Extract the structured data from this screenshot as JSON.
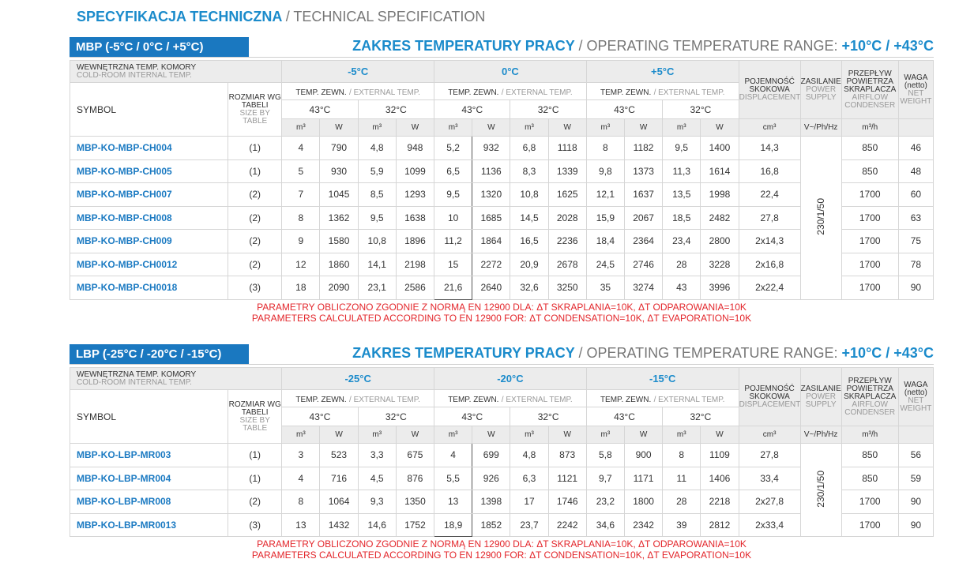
{
  "header": {
    "title": "SPECYFIKACJA TECHNICZNA",
    "subtitle": "/ TECHNICAL SPECIFICATION"
  },
  "sections": [
    {
      "badge": "MBP (-5°C / 0°C / +5°C)",
      "range_title": "ZAKRES TEMPERATURY PRACY",
      "range_subtitle": "/ OPERATING TEMPERATURE RANGE:",
      "range_value": "+10°C / +43°C",
      "table": {
        "chamber_label": "WEWNĘTRZNA TEMP. KOMORY",
        "chamber_label_en": "COLD-ROOM INTERNAL TEMP.",
        "symbol_label": "SYMBOL",
        "size_label": "ROZMIAR WG TABELI",
        "size_label_en": "SIZE BY TABLE",
        "groups": [
          "-5°C",
          "0°C",
          "+5°C"
        ],
        "ext_label": "TEMP. ZEWN.",
        "ext_label_en": "/ EXTERNAL TEMP.",
        "ext_temps": [
          "43°C",
          "32°C"
        ],
        "units": [
          "m³",
          "W"
        ],
        "displacement_label": "POJEMNOŚĆ SKOKOWA",
        "displacement_label_en": "DISPLACEMENT",
        "displacement_unit": "cm³",
        "supply_label": "ZASILANIE",
        "supply_label_en": "POWER SUPPLY",
        "supply_unit": "V~/Ph/Hz",
        "supply_value": "230/1/50",
        "airflow_label": "PRZEPŁYW POWIETRZA SKRAPLACZA",
        "airflow_label_en": "AIRFLOW CONDENSER",
        "airflow_unit": "m³/h",
        "weight_label": "WAGA (netto)",
        "weight_label_en": "NET WEIGHT",
        "rows": [
          [
            "MBP-KO-MBP-CH004",
            "(1)",
            "4",
            "790",
            "4,8",
            "948",
            "5,2",
            "932",
            "6,8",
            "1118",
            "8",
            "1182",
            "9,5",
            "1400",
            "14,3",
            "850",
            "46"
          ],
          [
            "MBP-KO-MBP-CH005",
            "(1)",
            "5",
            "930",
            "5,9",
            "1099",
            "6,5",
            "1136",
            "8,3",
            "1339",
            "9,8",
            "1373",
            "11,3",
            "1614",
            "16,8",
            "850",
            "48"
          ],
          [
            "MBP-KO-MBP-CH007",
            "(2)",
            "7",
            "1045",
            "8,5",
            "1293",
            "9,5",
            "1320",
            "10,8",
            "1625",
            "12,1",
            "1637",
            "13,5",
            "1998",
            "22,4",
            "1700",
            "60"
          ],
          [
            "MBP-KO-MBP-CH008",
            "(2)",
            "8",
            "1362",
            "9,5",
            "1638",
            "10",
            "1685",
            "14,5",
            "2028",
            "15,9",
            "2067",
            "18,5",
            "2482",
            "27,8",
            "1700",
            "63"
          ],
          [
            "MBP-KO-MBP-CH009",
            "(2)",
            "9",
            "1580",
            "10,8",
            "1896",
            "11,2",
            "1864",
            "16,5",
            "2236",
            "18,4",
            "2364",
            "23,4",
            "2800",
            "2x14,3",
            "1700",
            "75"
          ],
          [
            "MBP-KO-MBP-CH0012",
            "(2)",
            "12",
            "1860",
            "14,1",
            "2198",
            "15",
            "2272",
            "20,9",
            "2678",
            "24,5",
            "2746",
            "28",
            "3228",
            "2x16,8",
            "1700",
            "78"
          ],
          [
            "MBP-KO-MBP-CH0018",
            "(3)",
            "18",
            "2090",
            "23,1",
            "2586",
            "21,6",
            "2640",
            "32,6",
            "3250",
            "35",
            "3274",
            "43",
            "3996",
            "2x22,4",
            "1700",
            "90"
          ]
        ]
      },
      "notes": [
        "PARAMETRY OBLICZONO ZGODNIE Z NORMĄ EN 12900 DLA: ΔT SKRAPLANIA=10K, ΔT ODPAROWANIA=10K",
        "PARAMETERS CALCULATED ACCORDING TO EN 12900 FOR: ΔT CONDENSATION=10K, ΔT EVAPORATION=10K"
      ]
    },
    {
      "badge": "LBP (-25°C / -20°C / -15°C)",
      "range_title": "ZAKRES TEMPERATURY PRACY",
      "range_subtitle": "/ OPERATING TEMPERATURE RANGE:",
      "range_value": "+10°C / +43°C",
      "table": {
        "chamber_label": "WEWNĘTRZNA TEMP. KOMORY",
        "chamber_label_en": "COLD-ROOM INTERNAL TEMP.",
        "symbol_label": "SYMBOL",
        "size_label": "ROZMIAR WG TABELI",
        "size_label_en": "SIZE BY TABLE",
        "groups": [
          "-25°C",
          "-20°C",
          "-15°C"
        ],
        "ext_label": "TEMP. ZEWN.",
        "ext_label_en": "/ EXTERNAL TEMP.",
        "ext_temps": [
          "43°C",
          "32°C"
        ],
        "units": [
          "m³",
          "W"
        ],
        "displacement_label": "POJEMNOŚĆ SKOKOWA",
        "displacement_label_en": "DISPLACEMENT",
        "displacement_unit": "cm³",
        "supply_label": "ZASILANIE",
        "supply_label_en": "POWER SUPPLY",
        "supply_unit": "V~/Ph/Hz",
        "supply_value": "230/1/50",
        "airflow_label": "PRZEPŁYW POWIETRZA SKRAPLACZA",
        "airflow_label_en": "AIRFLOW CONDENSER",
        "airflow_unit": "m³/h",
        "weight_label": "WAGA (netto)",
        "weight_label_en": "NET WEIGHT",
        "rows": [
          [
            "MBP-KO-LBP-MR003",
            "(1)",
            "3",
            "523",
            "3,3",
            "675",
            "4",
            "699",
            "4,8",
            "873",
            "5,8",
            "900",
            "8",
            "1109",
            "27,8",
            "850",
            "56"
          ],
          [
            "MBP-KO-LBP-MR004",
            "(1)",
            "4",
            "716",
            "4,5",
            "876",
            "5,5",
            "926",
            "6,3",
            "1121",
            "9,7",
            "1171",
            "11",
            "1406",
            "33,4",
            "850",
            "59"
          ],
          [
            "MBP-KO-LBP-MR008",
            "(2)",
            "8",
            "1064",
            "9,3",
            "1350",
            "13",
            "1398",
            "17",
            "1746",
            "23,2",
            "1800",
            "28",
            "2218",
            "2x27,8",
            "1700",
            "90"
          ],
          [
            "MBP-KO-LBP-MR0013",
            "(3)",
            "13",
            "1432",
            "14,6",
            "1752",
            "18,9",
            "1852",
            "23,7",
            "2242",
            "34,6",
            "2342",
            "39",
            "2812",
            "2x33,4",
            "1700",
            "90"
          ]
        ]
      },
      "notes": [
        "PARAMETRY OBLICZONO ZGODNIE Z NORMĄ EN 12900 DLA: ΔT SKRAPLANIA=10K, ΔT ODPAROWANIA=10K",
        "PARAMETERS CALCULATED ACCORDING TO EN 12900 FOR: ΔT CONDENSATION=10K, ΔT EVAPORATION=10K"
      ]
    }
  ]
}
